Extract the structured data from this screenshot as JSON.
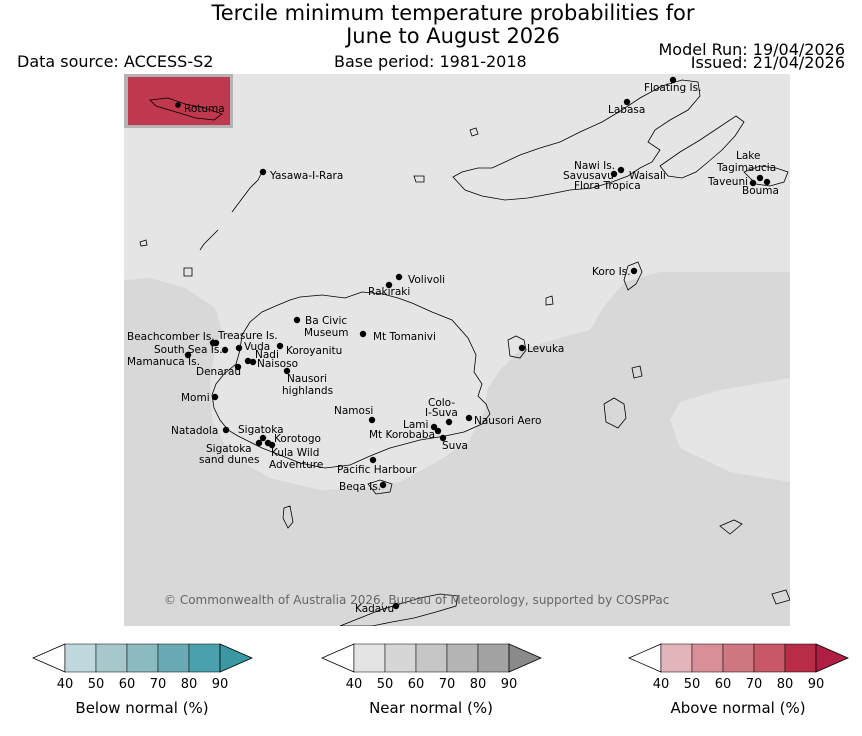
{
  "title": {
    "line1": "Tercile minimum temperature probabilities for",
    "line2": "June to August 2026"
  },
  "header": {
    "data_source": "Data source: ACCESS-S2",
    "base_period": "Base period: 1981-2018",
    "model_run": "Model Run: 19/04/2026",
    "issued": "Issued: 21/04/2026"
  },
  "map": {
    "inset_label": "Rotuma",
    "copyright": "© Commonwealth of Australia 2026, Bureau of Meteorology, supported by COSPPac",
    "places": {
      "floating": "Floating Is.",
      "labasa": "Labasa",
      "yasawa": "Yasawa-I-Rara",
      "nawi": "Nawi Is.",
      "savusavu": "Savusavu",
      "waisali": "Waisali",
      "flora": "Flora Tropica",
      "lake": "Lake",
      "tagimaucia": "Tagimaucia",
      "taveuni": "Taveuni",
      "bouma": "Bouma",
      "koro": "Koro Is.",
      "volivoli": "Volivoli",
      "rakiraki": "Rakiraki",
      "beachcomber": "Beachcomber Is.",
      "treasure": "Treasure Is.",
      "southsea": "South Sea Is.",
      "vuda": "Vuda",
      "mamanuca": "Mamanuca Is.",
      "nadi": "Nadi",
      "naisoso": "Naisoso",
      "denarau": "Denarau",
      "bacivic1": "Ba Civic",
      "bacivic2": "Museum",
      "tomanivi": "Mt Tomanivi",
      "koroyanitu": "Koroyanitu",
      "levuka": "Levuka",
      "nausori_h1": "Nausori",
      "nausori_h2": "highlands",
      "momi": "Momi",
      "namosi": "Namosi",
      "colo1": "Colo-",
      "colo2": "I-Suva",
      "lami": "Lami",
      "nausori_aero": "Nausori Aero",
      "korobaba": "Mt Korobaba",
      "suva": "Suva",
      "natadola": "Natadola",
      "sigatoka": "Sigatoka",
      "korotogo": "Korotogo",
      "sig_dunes1": "Sigatoka",
      "sig_dunes2": "sand dunes",
      "kula1": "Kula Wild",
      "kula2": "Adventure",
      "pacific": "Pacific Harbour",
      "beqa": "Beqa Is.",
      "kadavu": "Kadavu"
    }
  },
  "colorbars": [
    {
      "title": "Below normal (%)",
      "ticks": [
        "40",
        "50",
        "60",
        "70",
        "80",
        "90"
      ],
      "colors": [
        "#ffffff",
        "#bed8de",
        "#a6c8cd",
        "#8bbac1",
        "#6aaab5",
        "#4aa0ad",
        "#3b98a3"
      ]
    },
    {
      "title": "Near normal (%)",
      "ticks": [
        "40",
        "50",
        "60",
        "70",
        "80",
        "90"
      ],
      "colors": [
        "#ffffff",
        "#e4e4e4",
        "#d6d6d6",
        "#c6c6c6",
        "#b4b4b4",
        "#a3a3a3",
        "#8a8a8a"
      ]
    },
    {
      "title": "Above normal (%)",
      "ticks": [
        "40",
        "50",
        "60",
        "70",
        "80",
        "90"
      ],
      "colors": [
        "#ffffff",
        "#e3b4ba",
        "#d98f98",
        "#cf7780",
        "#c85867",
        "#b82c47",
        "#b01f43"
      ]
    }
  ]
}
